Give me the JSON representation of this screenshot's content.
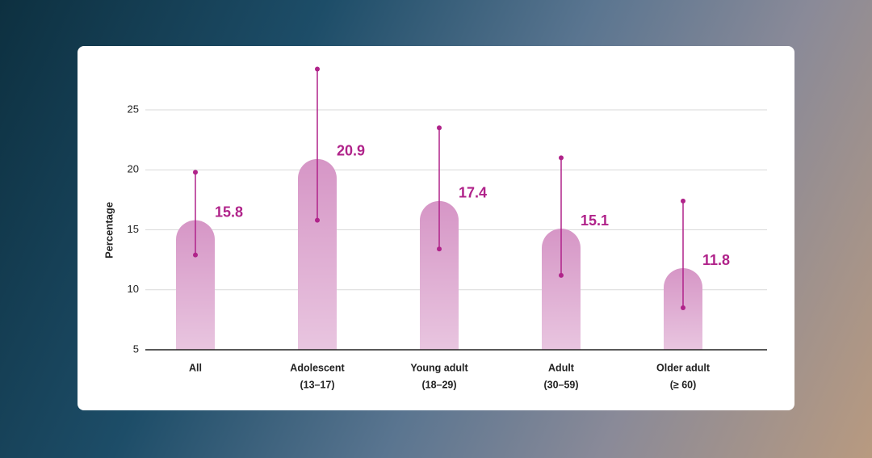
{
  "chart_data": {
    "type": "bar",
    "y_label": "Percentage",
    "categories": [
      [
        "All"
      ],
      [
        "Adolescent",
        "(13–17)"
      ],
      [
        "Young adult",
        "(18–29)"
      ],
      [
        "Adult",
        "(30–59)"
      ],
      [
        "Older adult",
        "(≥ 60)"
      ]
    ],
    "values": [
      15.8,
      20.9,
      17.4,
      15.1,
      11.8
    ],
    "lower": [
      12.9,
      15.8,
      13.4,
      11.2,
      8.5
    ],
    "upper": [
      19.8,
      28.4,
      23.5,
      21.0,
      17.4
    ],
    "color": "#d696c6",
    "error_color": "#b0238a",
    "ylim": [
      5,
      28.5
    ],
    "yticks": [
      5,
      10,
      15,
      20,
      25
    ],
    "grid": true
  }
}
